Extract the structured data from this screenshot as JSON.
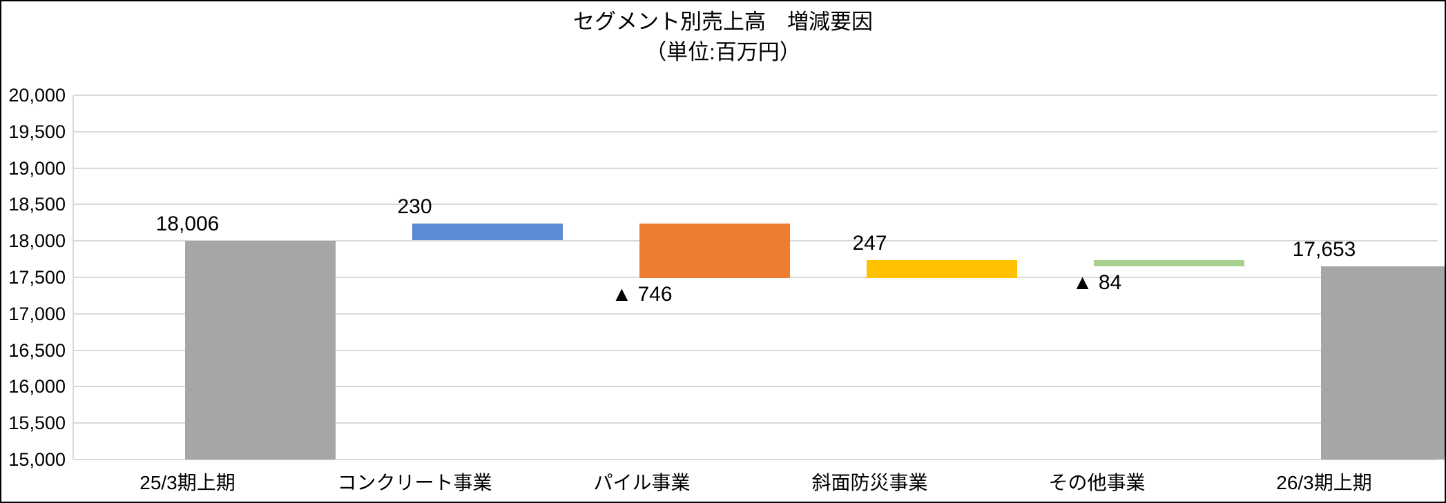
{
  "header": {
    "title": "セグメント別売上高　増減要因",
    "subtitle": "（単位:百万円）"
  },
  "chart_data": {
    "type": "bar",
    "subtype": "waterfall",
    "title": "セグメント別売上高　増減要因",
    "subtitle": "（単位:百万円）",
    "unit": "百万円",
    "categories": [
      "25/3期上期",
      "コンクリート事業",
      "パイル事業",
      "斜面防災事業",
      "その他事業",
      "26/3期上期"
    ],
    "bars": [
      {
        "category": "25/3期上期",
        "label": "18,006",
        "value": 18006,
        "start": 15000,
        "end": 18006,
        "color": "#a6a6a6",
        "role": "total",
        "label_position": "above"
      },
      {
        "category": "コンクリート事業",
        "label": "230",
        "value": 230,
        "start": 18006,
        "end": 18236,
        "color": "#5b8bd5",
        "role": "increase",
        "label_position": "above"
      },
      {
        "category": "パイル事業",
        "label": "▲ 746",
        "value": -746,
        "start": 18236,
        "end": 17490,
        "color": "#ed7d31",
        "role": "decrease",
        "label_position": "below"
      },
      {
        "category": "斜面防災事業",
        "label": "247",
        "value": 247,
        "start": 17490,
        "end": 17737,
        "color": "#ffc000",
        "role": "increase",
        "label_position": "above"
      },
      {
        "category": "その他事業",
        "label": "▲ 84",
        "value": -84,
        "start": 17737,
        "end": 17653,
        "color": "#a9d18e",
        "role": "decrease",
        "label_position": "below"
      },
      {
        "category": "26/3期上期",
        "label": "17,653",
        "value": 17653,
        "start": 15000,
        "end": 17653,
        "color": "#a6a6a6",
        "role": "total",
        "label_position": "above"
      }
    ],
    "y_axis": {
      "min": 15000,
      "max": 20000,
      "step": 500,
      "tick_labels": [
        "15,000",
        "15,500",
        "16,000",
        "16,500",
        "17,000",
        "17,500",
        "18,000",
        "18,500",
        "19,000",
        "19,500",
        "20,000"
      ]
    },
    "grid": true,
    "legend": false,
    "colors": {
      "gridline": "#d9d9d9",
      "frame_border": "#000000",
      "text": "#000000"
    }
  }
}
